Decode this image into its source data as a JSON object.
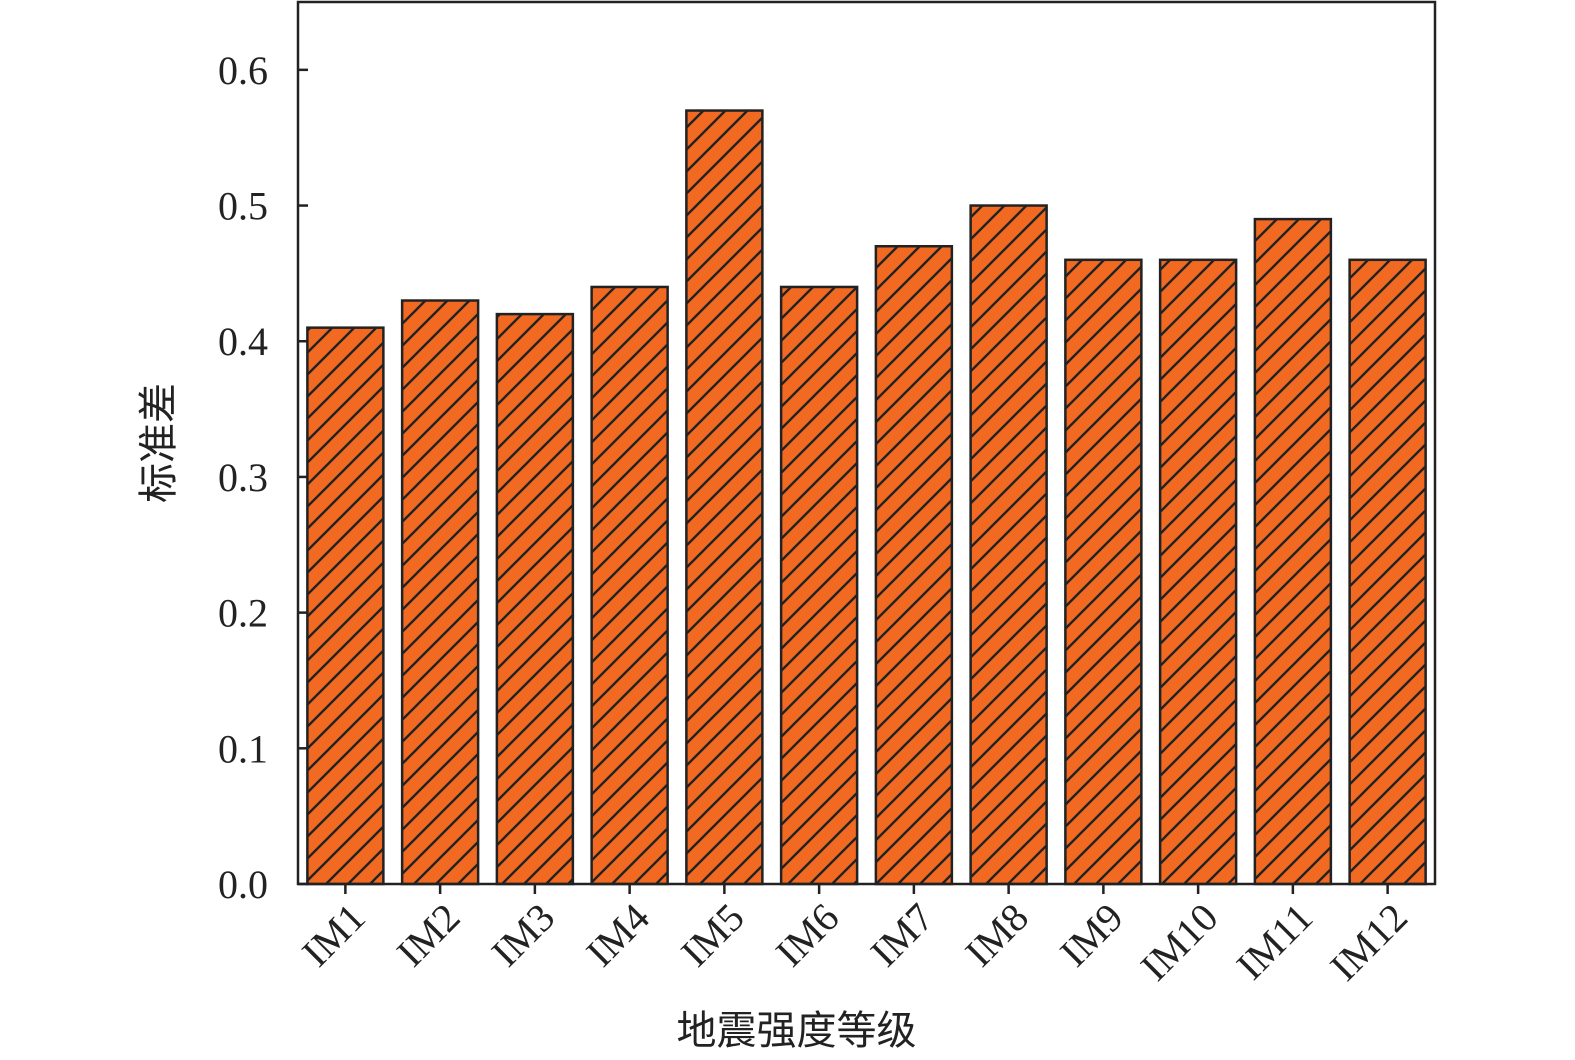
{
  "chart_data": {
    "type": "bar",
    "title": "",
    "xlabel": "地震强度等级",
    "ylabel": "标准差",
    "categories": [
      "IM1",
      "IM2",
      "IM3",
      "IM4",
      "IM5",
      "IM6",
      "IM7",
      "IM8",
      "IM9",
      "IM10",
      "IM11",
      "IM12"
    ],
    "values": [
      0.41,
      0.43,
      0.42,
      0.44,
      0.57,
      0.44,
      0.47,
      0.5,
      0.46,
      0.46,
      0.49,
      0.46
    ],
    "ylim": [
      0,
      0.65
    ],
    "yticks": [
      "0.0",
      "0.1",
      "0.2",
      "0.3",
      "0.4",
      "0.5",
      "0.6"
    ],
    "grid": false,
    "legend": "none",
    "bar_color": "#F26A21",
    "bar_hatch": "diagonal",
    "edge_color": "#222222"
  }
}
